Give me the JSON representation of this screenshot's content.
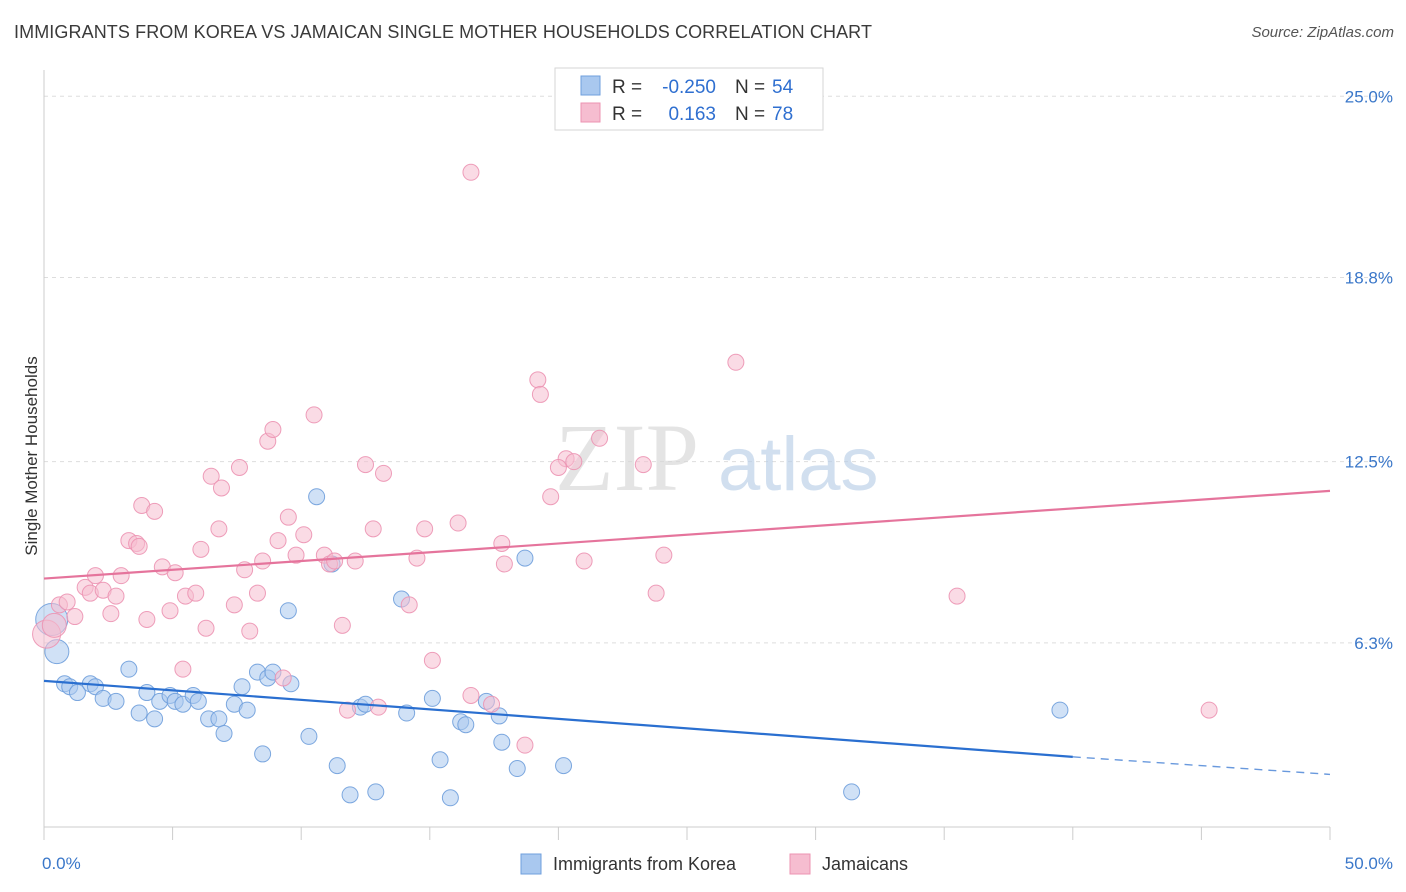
{
  "title": "IMMIGRANTS FROM KOREA VS JAMAICAN SINGLE MOTHER HOUSEHOLDS CORRELATION CHART",
  "source": "Source: ZipAtlas.com",
  "watermark": {
    "zip": "ZIP",
    "atlas": "atlas"
  },
  "colors": {
    "korea_fill": "#a9c8ef",
    "korea_stroke": "#6f9fdc",
    "korea_line": "#2a6fd0",
    "jamaica_fill": "#f6bdd0",
    "jamaica_stroke": "#ec93b2",
    "jamaica_line": "#e5749c",
    "tick_text": "#3a77c9",
    "grid": "#dddddd"
  },
  "legend": {
    "korea": {
      "r_label": "R =",
      "r_value": "-0.250",
      "n_label": "N =",
      "n_value": "54"
    },
    "jamaica": {
      "r_label": "R =",
      "r_value": "0.163",
      "n_label": "N =",
      "n_value": "78"
    }
  },
  "bottom_legend": {
    "korea": "Immigrants from Korea",
    "jamaica": "Jamaicans"
  },
  "chart_data": {
    "type": "scatter",
    "xlabel": "",
    "ylabel": "Single Mother Households",
    "xlim": [
      0,
      50
    ],
    "ylim": [
      0,
      25.9
    ],
    "x_tick_labels": [
      "0.0%",
      "50.0%"
    ],
    "y_ticks": [
      6.3,
      12.5,
      18.8,
      25.0
    ],
    "y_tick_labels": [
      "6.3%",
      "12.5%",
      "18.8%",
      "25.0%"
    ],
    "grid": true,
    "legend_position": "top-center",
    "series": [
      {
        "name": "Immigrants from Korea",
        "color": "#a9c8ef",
        "r": -0.25,
        "n": 54,
        "trend": {
          "x0": 0,
          "y0": 5.0,
          "x1": 40,
          "y1": 2.4,
          "dash_x1": 50,
          "dash_y1": 1.8
        },
        "points": [
          [
            0.3,
            7.1,
            16
          ],
          [
            0.5,
            6.0,
            12
          ],
          [
            0.8,
            4.9,
            8
          ],
          [
            1.0,
            4.8,
            8
          ],
          [
            1.3,
            4.6,
            8
          ],
          [
            1.8,
            4.9,
            8
          ],
          [
            2.0,
            4.8,
            8
          ],
          [
            2.3,
            4.4,
            8
          ],
          [
            2.8,
            4.3,
            8
          ],
          [
            3.3,
            5.4,
            8
          ],
          [
            3.7,
            3.9,
            8
          ],
          [
            4.0,
            4.6,
            8
          ],
          [
            4.3,
            3.7,
            8
          ],
          [
            4.5,
            4.3,
            8
          ],
          [
            4.9,
            4.5,
            8
          ],
          [
            5.1,
            4.3,
            8
          ],
          [
            5.4,
            4.2,
            8
          ],
          [
            5.8,
            4.5,
            8
          ],
          [
            6.0,
            4.3,
            8
          ],
          [
            6.4,
            3.7,
            8
          ],
          [
            6.8,
            3.7,
            8
          ],
          [
            7.0,
            3.2,
            8
          ],
          [
            7.4,
            4.2,
            8
          ],
          [
            7.7,
            4.8,
            8
          ],
          [
            7.9,
            4.0,
            8
          ],
          [
            8.3,
            5.3,
            8
          ],
          [
            8.5,
            2.5,
            8
          ],
          [
            8.7,
            5.1,
            8
          ],
          [
            8.9,
            5.3,
            8
          ],
          [
            9.5,
            7.4,
            8
          ],
          [
            9.6,
            4.9,
            8
          ],
          [
            10.3,
            3.1,
            8
          ],
          [
            10.6,
            11.3,
            8
          ],
          [
            11.2,
            9.0,
            8
          ],
          [
            11.4,
            2.1,
            8
          ],
          [
            11.9,
            1.1,
            8
          ],
          [
            12.3,
            4.1,
            8
          ],
          [
            12.9,
            1.2,
            8
          ],
          [
            13.9,
            7.8,
            8
          ],
          [
            14.1,
            3.9,
            8
          ],
          [
            15.1,
            4.4,
            8
          ],
          [
            15.4,
            2.3,
            8
          ],
          [
            15.8,
            1.0,
            8
          ],
          [
            16.2,
            3.6,
            8
          ],
          [
            16.4,
            3.5,
            8
          ],
          [
            17.2,
            4.3,
            8
          ],
          [
            17.7,
            3.8,
            8
          ],
          [
            17.8,
            2.9,
            8
          ],
          [
            18.4,
            2.0,
            8
          ],
          [
            18.7,
            9.2,
            8
          ],
          [
            20.2,
            2.1,
            8
          ],
          [
            31.4,
            1.2,
            8
          ],
          [
            39.5,
            4.0,
            8
          ],
          [
            12.5,
            4.2,
            8
          ]
        ]
      },
      {
        "name": "Jamaicans",
        "color": "#f6bdd0",
        "r": 0.163,
        "n": 78,
        "trend": {
          "x0": 0,
          "y0": 8.5,
          "x1": 50,
          "y1": 11.5
        },
        "points": [
          [
            0.1,
            6.6,
            14
          ],
          [
            0.4,
            6.9,
            12
          ],
          [
            0.6,
            7.6,
            8
          ],
          [
            0.9,
            7.7,
            8
          ],
          [
            1.2,
            7.2,
            8
          ],
          [
            1.6,
            8.2,
            8
          ],
          [
            1.8,
            8.0,
            8
          ],
          [
            2.0,
            8.6,
            8
          ],
          [
            2.3,
            8.1,
            8
          ],
          [
            2.6,
            7.3,
            8
          ],
          [
            2.8,
            7.9,
            8
          ],
          [
            3.0,
            8.6,
            8
          ],
          [
            3.3,
            9.8,
            8
          ],
          [
            3.6,
            9.7,
            8
          ],
          [
            3.8,
            11.0,
            8
          ],
          [
            4.0,
            7.1,
            8
          ],
          [
            4.3,
            10.8,
            8
          ],
          [
            4.6,
            8.9,
            8
          ],
          [
            4.9,
            7.4,
            8
          ],
          [
            5.1,
            8.7,
            8
          ],
          [
            5.4,
            5.4,
            8
          ],
          [
            5.5,
            7.9,
            8
          ],
          [
            5.9,
            8.0,
            8
          ],
          [
            6.1,
            9.5,
            8
          ],
          [
            6.3,
            6.8,
            8
          ],
          [
            6.5,
            12.0,
            8
          ],
          [
            6.8,
            10.2,
            8
          ],
          [
            6.9,
            11.6,
            8
          ],
          [
            7.4,
            7.6,
            8
          ],
          [
            7.6,
            12.3,
            8
          ],
          [
            7.8,
            8.8,
            8
          ],
          [
            8.0,
            6.7,
            8
          ],
          [
            8.3,
            8.0,
            8
          ],
          [
            8.5,
            9.1,
            8
          ],
          [
            8.7,
            13.2,
            8
          ],
          [
            8.9,
            13.6,
            8
          ],
          [
            9.3,
            5.1,
            8
          ],
          [
            9.5,
            10.6,
            8
          ],
          [
            9.8,
            9.3,
            8
          ],
          [
            10.1,
            10.0,
            8
          ],
          [
            10.5,
            14.1,
            8
          ],
          [
            10.9,
            9.3,
            8
          ],
          [
            11.1,
            9.0,
            8
          ],
          [
            11.3,
            9.1,
            8
          ],
          [
            11.6,
            6.9,
            8
          ],
          [
            11.8,
            4.0,
            8
          ],
          [
            12.1,
            9.1,
            8
          ],
          [
            12.5,
            12.4,
            8
          ],
          [
            12.8,
            10.2,
            8
          ],
          [
            13.0,
            4.1,
            8
          ],
          [
            13.2,
            12.1,
            8
          ],
          [
            14.5,
            9.2,
            8
          ],
          [
            14.8,
            10.2,
            8
          ],
          [
            15.1,
            5.7,
            8
          ],
          [
            16.1,
            10.4,
            8
          ],
          [
            16.6,
            4.5,
            8
          ],
          [
            17.4,
            4.2,
            8
          ],
          [
            17.8,
            9.7,
            8
          ],
          [
            17.9,
            9.0,
            8
          ],
          [
            18.7,
            2.8,
            8
          ],
          [
            19.2,
            15.3,
            8
          ],
          [
            19.3,
            14.8,
            8
          ],
          [
            19.7,
            11.3,
            8
          ],
          [
            20.3,
            12.6,
            8
          ],
          [
            20.6,
            12.5,
            8
          ],
          [
            21.0,
            9.1,
            8
          ],
          [
            21.6,
            13.3,
            8
          ],
          [
            23.3,
            12.4,
            8
          ],
          [
            23.8,
            8.0,
            8
          ],
          [
            24.1,
            9.3,
            8
          ],
          [
            26.9,
            15.9,
            8
          ],
          [
            16.6,
            22.4,
            8
          ],
          [
            35.5,
            7.9,
            8
          ],
          [
            45.3,
            4.0,
            8
          ],
          [
            20.0,
            12.3,
            8
          ],
          [
            14.2,
            7.6,
            8
          ],
          [
            9.1,
            9.8,
            8
          ],
          [
            3.7,
            9.6,
            8
          ]
        ]
      }
    ]
  }
}
